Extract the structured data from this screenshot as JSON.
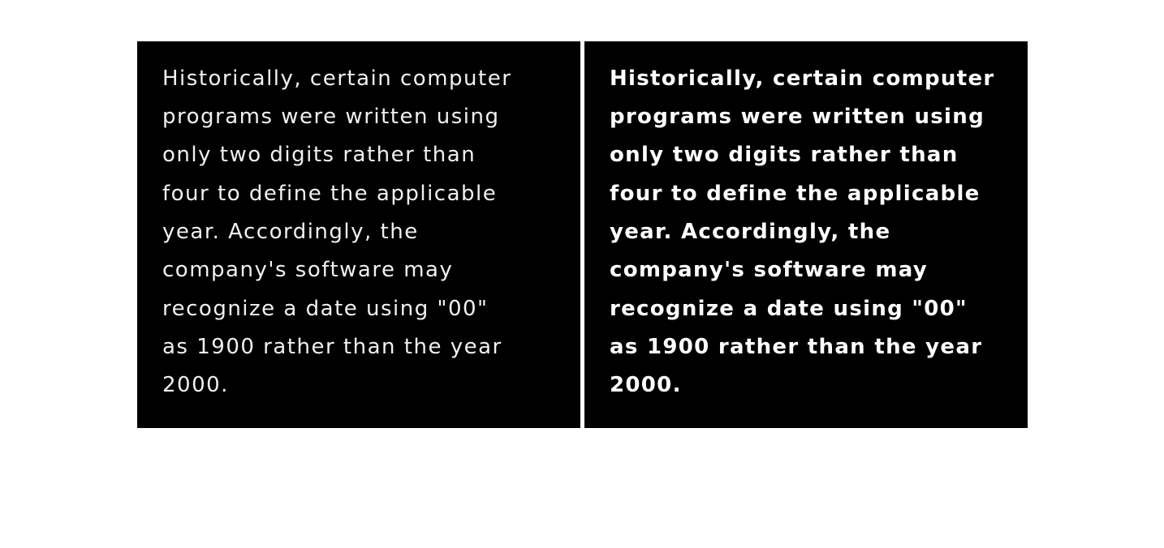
{
  "panels": {
    "left": {
      "style": "regular",
      "lines": [
        "Historically, certain computer",
        "programs were written using",
        "only two digits rather than",
        "four to define the applicable",
        "year. Accordingly, the",
        "company's software may",
        "recognize a date using \"00\"",
        "as 1900 rather than the year",
        "2000."
      ]
    },
    "right": {
      "style": "bold",
      "lines": [
        "Historically, certain computer",
        "programs were written using",
        "only two digits rather than",
        "four to define the applicable",
        "year. Accordingly, the",
        "company's software may",
        "recognize a date using \"00\"",
        "as 1900 rather than the year",
        "2000."
      ]
    }
  },
  "colors": {
    "background": "#ffffff",
    "panel_background": "#000000",
    "text": "#ffffff"
  }
}
